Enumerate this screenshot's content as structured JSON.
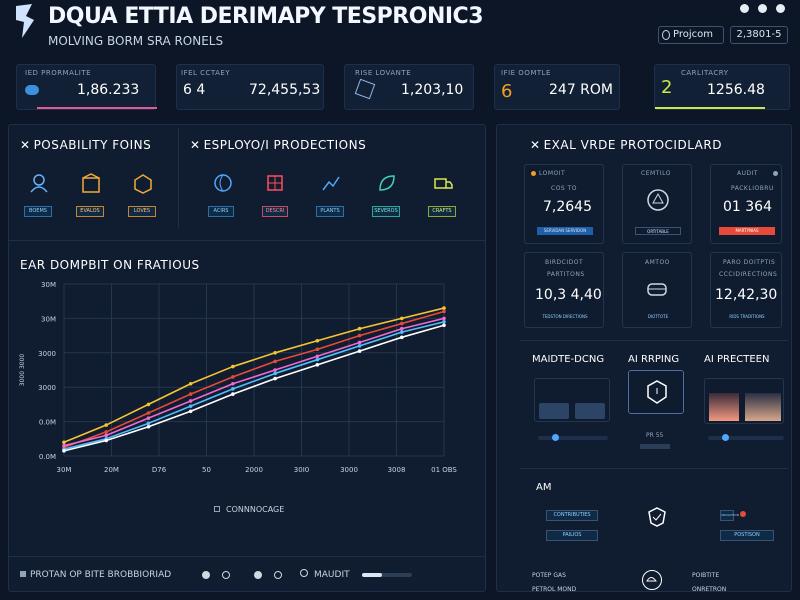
{
  "header": {
    "title": "DQUA ETTIA DERIMAPY TESPRONIC3",
    "subtitle": "MOLVING BORM SRA RONELS",
    "project_label": "Projcom",
    "date_range": "2,3801-5"
  },
  "kpis": [
    {
      "label": "IED PRORMALITE",
      "value": "1,86.233",
      "accent": "#e05a9a"
    },
    {
      "label": "IFEL  CCTAEY",
      "value": "72,455,53",
      "badge": "6 4"
    },
    {
      "label": "RISE  LOVANTE",
      "value": "1,203,10"
    },
    {
      "label": "IFIE  OOMTLE",
      "value": "247 ROM",
      "badge": "6",
      "accent": "#f2a020"
    },
    {
      "label": "CARLITACRY",
      "value": "1256.48",
      "badge": "2",
      "accent": "#c9e84a"
    }
  ],
  "possibility": {
    "title": "POSABILITY FOINS",
    "items": [
      "BOEMS",
      "EVALOS",
      "LOVES"
    ]
  },
  "esployon": {
    "title": "ESPLOYO/I PRODECTIONS",
    "items": [
      "ACIRS",
      "DESCRI",
      "PLANTS",
      "SEVEROS",
      "CRAFTS"
    ]
  },
  "chart": {
    "title": "EAR DOMPBIT ON FRATIOUS",
    "legend": "CONNNOCAGE"
  },
  "chart_data": {
    "type": "line",
    "x": [
      0,
      1,
      2,
      3,
      4,
      5,
      6,
      7,
      8,
      9
    ],
    "xticks": [
      "30M",
      "20M",
      "D76",
      "50",
      "2000",
      "30I0",
      "3000",
      "3008",
      "01 OBS"
    ],
    "yticks": [
      "30M",
      "30M",
      "3000",
      "3000",
      "0.0M",
      "0.0M"
    ],
    "ylabel": "3000  3000",
    "ylim": [
      0,
      100
    ],
    "series": [
      {
        "values": [
          8,
          18,
          30,
          42,
          52,
          60,
          67,
          74,
          80,
          86
        ],
        "color": "#f7c531"
      },
      {
        "values": [
          5,
          14,
          25,
          36,
          46,
          55,
          62,
          70,
          77,
          84
        ],
        "color": "#e84a3a"
      },
      {
        "values": [
          6,
          12,
          22,
          32,
          42,
          50,
          58,
          66,
          74,
          80
        ],
        "color": "#f06ad0"
      },
      {
        "values": [
          4,
          10,
          19,
          29,
          39,
          48,
          56,
          64,
          72,
          78
        ],
        "color": "#4fc0ff"
      },
      {
        "values": [
          3,
          9,
          17,
          26,
          36,
          45,
          53,
          61,
          69,
          76
        ],
        "color": "#ffffff"
      }
    ]
  },
  "footer": {
    "left_label": "PROTAN OP BITE BROBBIORIAD",
    "middle_label": "MAUDIT"
  },
  "right": {
    "title": "EXAL VRDE PROTOCIDLARD",
    "cards": [
      {
        "label": "LOMOIT",
        "sub": "COS TO",
        "value": "7,2645",
        "tag": "SERVIDAN SERVIDON"
      },
      {
        "label": "CEMTILO",
        "sub": "",
        "value": "",
        "tag": "ORTITABLE"
      },
      {
        "label": "AUDIT",
        "sub": "PACKLIOBRU",
        "value": "01 364",
        "tag": "MARTYNIAS"
      },
      {
        "label": "BIRDCIDOT",
        "sub": "PARTITONS",
        "value": "10,3 4,40",
        "tag": "TEDSTON DIRECTIONS"
      },
      {
        "label": "AMTOO",
        "sub": "",
        "value": "",
        "tag": "DIOTTOTE"
      },
      {
        "label": "PARO DOITPTIS",
        "sub": "CCCIDIRECTIONS",
        "value": "12,42,30",
        "tag": "RIDS TRADITIONS"
      }
    ],
    "mid_titles": [
      "MAIDTE-DCNG",
      "AI RRPING",
      "AI PRECTEEN"
    ],
    "mid_tag": "PR 55",
    "am_title": "AM",
    "am_tags": [
      "CONTRIBUTIES",
      "PAILIOS",
      "ORDLOTION",
      "POSTISON"
    ],
    "bottom_labels": [
      "POTEP GAS",
      "PETROL MOND",
      "POIBTITE",
      "ONRETRON"
    ]
  }
}
